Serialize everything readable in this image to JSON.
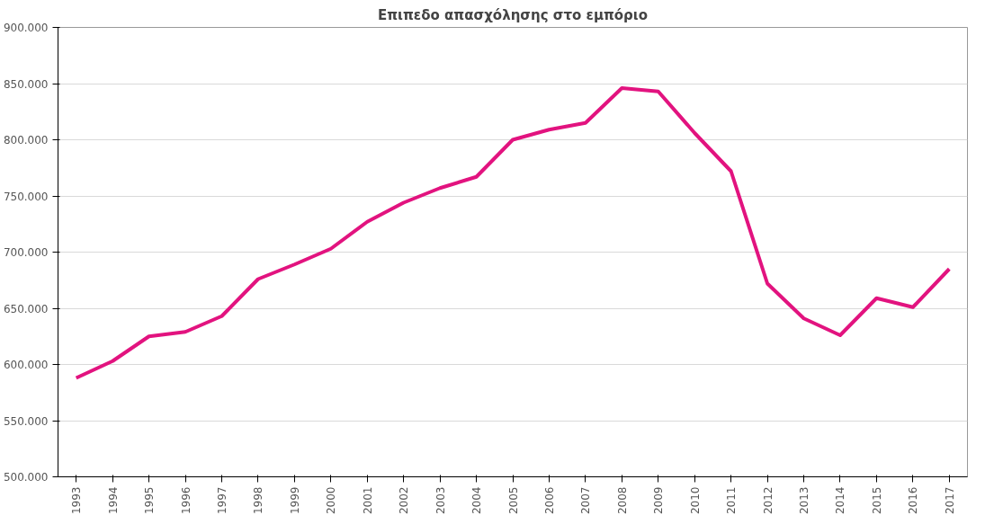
{
  "chart_data": {
    "type": "line",
    "title": "Επιπεδο απασχόλησης στο εμπόριο",
    "categories": [
      "1993",
      "1994",
      "1995",
      "1996",
      "1997",
      "1998",
      "1999",
      "2000",
      "2001",
      "2002",
      "2003",
      "2004",
      "2005",
      "2006",
      "2007",
      "2008",
      "2009",
      "2010",
      "2011",
      "2012",
      "2013",
      "2014",
      "2015",
      "2016",
      "2017"
    ],
    "series": [
      {
        "color": "#e2137f",
        "values": [
          588000,
          603000,
          625000,
          629000,
          643000,
          676000,
          689000,
          703000,
          727000,
          744000,
          757000,
          767000,
          800000,
          809000,
          815000,
          846000,
          843000,
          806000,
          772000,
          672000,
          641000,
          626000,
          659000,
          651000,
          685000
        ]
      }
    ],
    "ylim": [
      500000,
      900000
    ],
    "yticks": [
      {
        "value": 500000,
        "label": "500.000"
      },
      {
        "value": 550000,
        "label": "550.000"
      },
      {
        "value": 600000,
        "label": "600.000"
      },
      {
        "value": 650000,
        "label": "650.000"
      },
      {
        "value": 700000,
        "label": "700.000"
      },
      {
        "value": 750000,
        "label": "750.000"
      },
      {
        "value": 800000,
        "label": "800.000"
      },
      {
        "value": 850000,
        "label": "850.000"
      },
      {
        "value": 900000,
        "label": "900.000"
      }
    ],
    "grid": "y",
    "marker": "none",
    "line_style": "solid"
  }
}
